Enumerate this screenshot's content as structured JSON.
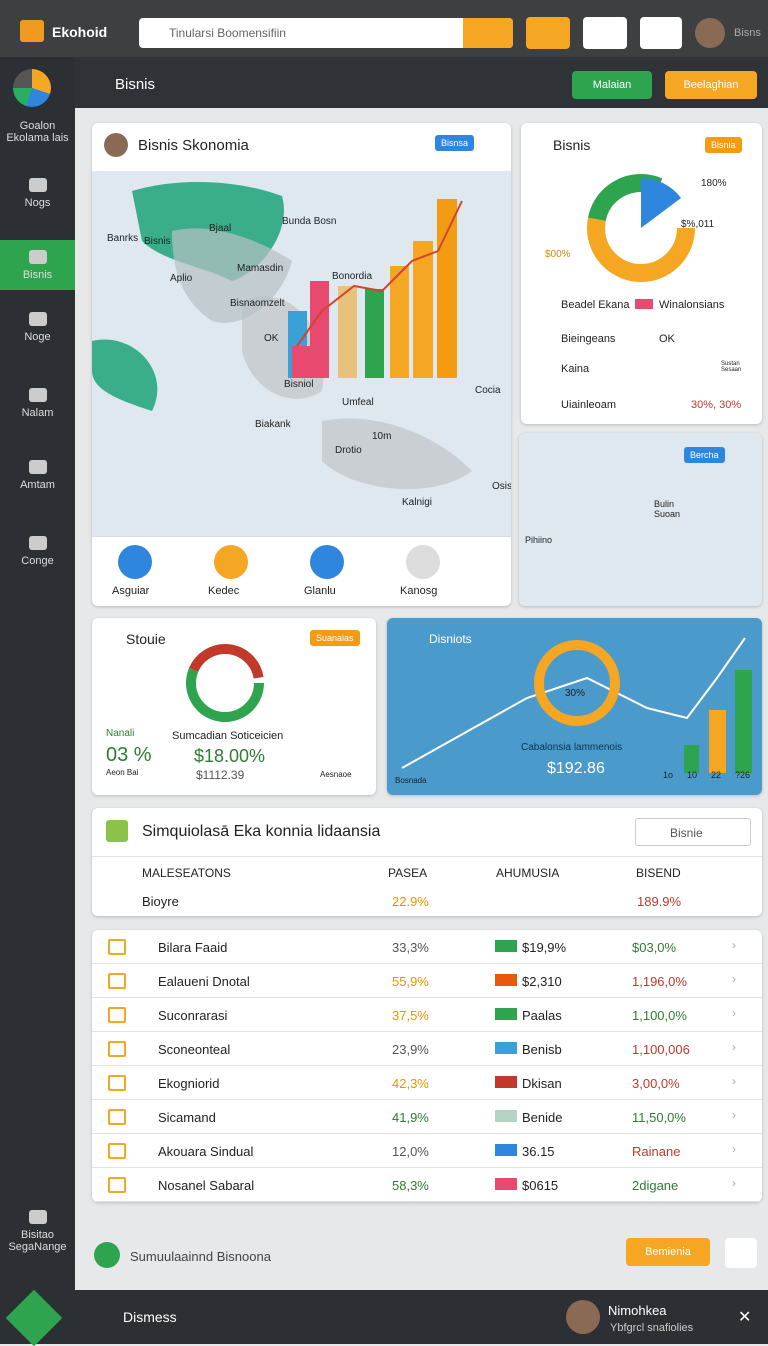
{
  "header": {
    "logo": "Ekohoid",
    "search": "Tinularsi Boomensifiin",
    "user": "Bisns"
  },
  "sidebar": {
    "items": [
      "Goalon Ekolama lais",
      "Nogs",
      "Bisnis",
      "Noge",
      "Nalam",
      "Amtam",
      "Conge"
    ],
    "bottom": "Bisitao SegaNange"
  },
  "topbar": {
    "title": "Bisnis",
    "buttons": [
      "Malaian",
      "Beelaghian"
    ]
  },
  "map_card": {
    "title": "Bisnis Skonomia",
    "badge": "Bisnsa",
    "labels": [
      "Bjaal",
      "Banrks",
      "Bisnis",
      "Aplio",
      "Bunda Bosn",
      "Mamasdin",
      "Bonordia",
      "Bisnaomzelt",
      "OK",
      "Bisniol",
      "Umfeal",
      "Biakank",
      "10m",
      "Drotio",
      "Cocia",
      "Osisic",
      "Kalnigi"
    ],
    "actions": [
      "Asguiar",
      "Kedec",
      "Glanlu",
      "Kanosg"
    ]
  },
  "pie_card": {
    "title": "Bisnis",
    "badge": "Bisnia",
    "labels": [
      "180%",
      "$%,011",
      "$00%"
    ],
    "legend": [
      "Beadel Ekana",
      "Winalonsians"
    ],
    "list": [
      "Bieingeans",
      "OK",
      "Kaina",
      "Sustan Sesaan",
      "Uiainleoam",
      "30%, 30%"
    ]
  },
  "small_map": {
    "badge": "Bercha",
    "labels": [
      "Bulin Suoan",
      "Pihiino"
    ]
  },
  "stats_card": {
    "title": "Stouie",
    "badge": "Suanaias",
    "left_label": "Nanali",
    "left_value": "03 %",
    "left_sub": "Aeon Bai",
    "middle_label": "Sumcadian Soticeicien",
    "middle_value": "$18.00%",
    "middle_sub": "$1112.39",
    "right_sub": "Aesnaoe"
  },
  "blue_card": {
    "title": "Disniots",
    "pie_label": "30%",
    "caption": "Cabalonsia lammenois",
    "value": "$192.86",
    "note": "Bosnada",
    "axis": [
      "1o",
      "10",
      "22",
      "?26"
    ]
  },
  "table": {
    "title": "Simquiolasā Eka konnia lidaansia",
    "select": "Bisnie",
    "columns": [
      "MALESEATONS",
      "PASEA",
      "AHUMUSIA",
      "BISEND"
    ],
    "first_row": [
      "Bioyre",
      "22.9%",
      "189.9%"
    ],
    "rows": [
      [
        "Bilara Faaid",
        "33,3%",
        "$19,9%",
        "$03,0%"
      ],
      [
        "Ealaueni Dnotal",
        "55,9%",
        "$2,310",
        "1,196,0%"
      ],
      [
        "Suconrarasi",
        "37,5%",
        "Paalas",
        "1,100,0%"
      ],
      [
        "Sconeonteal",
        "23,9%",
        "Benisb",
        "1,100,006"
      ],
      [
        "Ekogniorid",
        "42,3%",
        "Dkisan",
        "3,00,0%"
      ],
      [
        "Sicamand",
        "41,9%",
        "Benide",
        "11,50,0%"
      ],
      [
        "Akouara Sindual",
        "12,0%",
        "36.15",
        "Rainane"
      ],
      [
        "Nosanel Sabaral",
        "58,3%",
        "$0615",
        "2digane"
      ]
    ]
  },
  "footer": {
    "text": "Sumuulaainnd Bisnoona",
    "button": "Bemienia"
  },
  "bottom_bar": {
    "title": "Dismess",
    "name": "Nimohkea",
    "subtitle": "Ybfgrcl snafiolies"
  }
}
